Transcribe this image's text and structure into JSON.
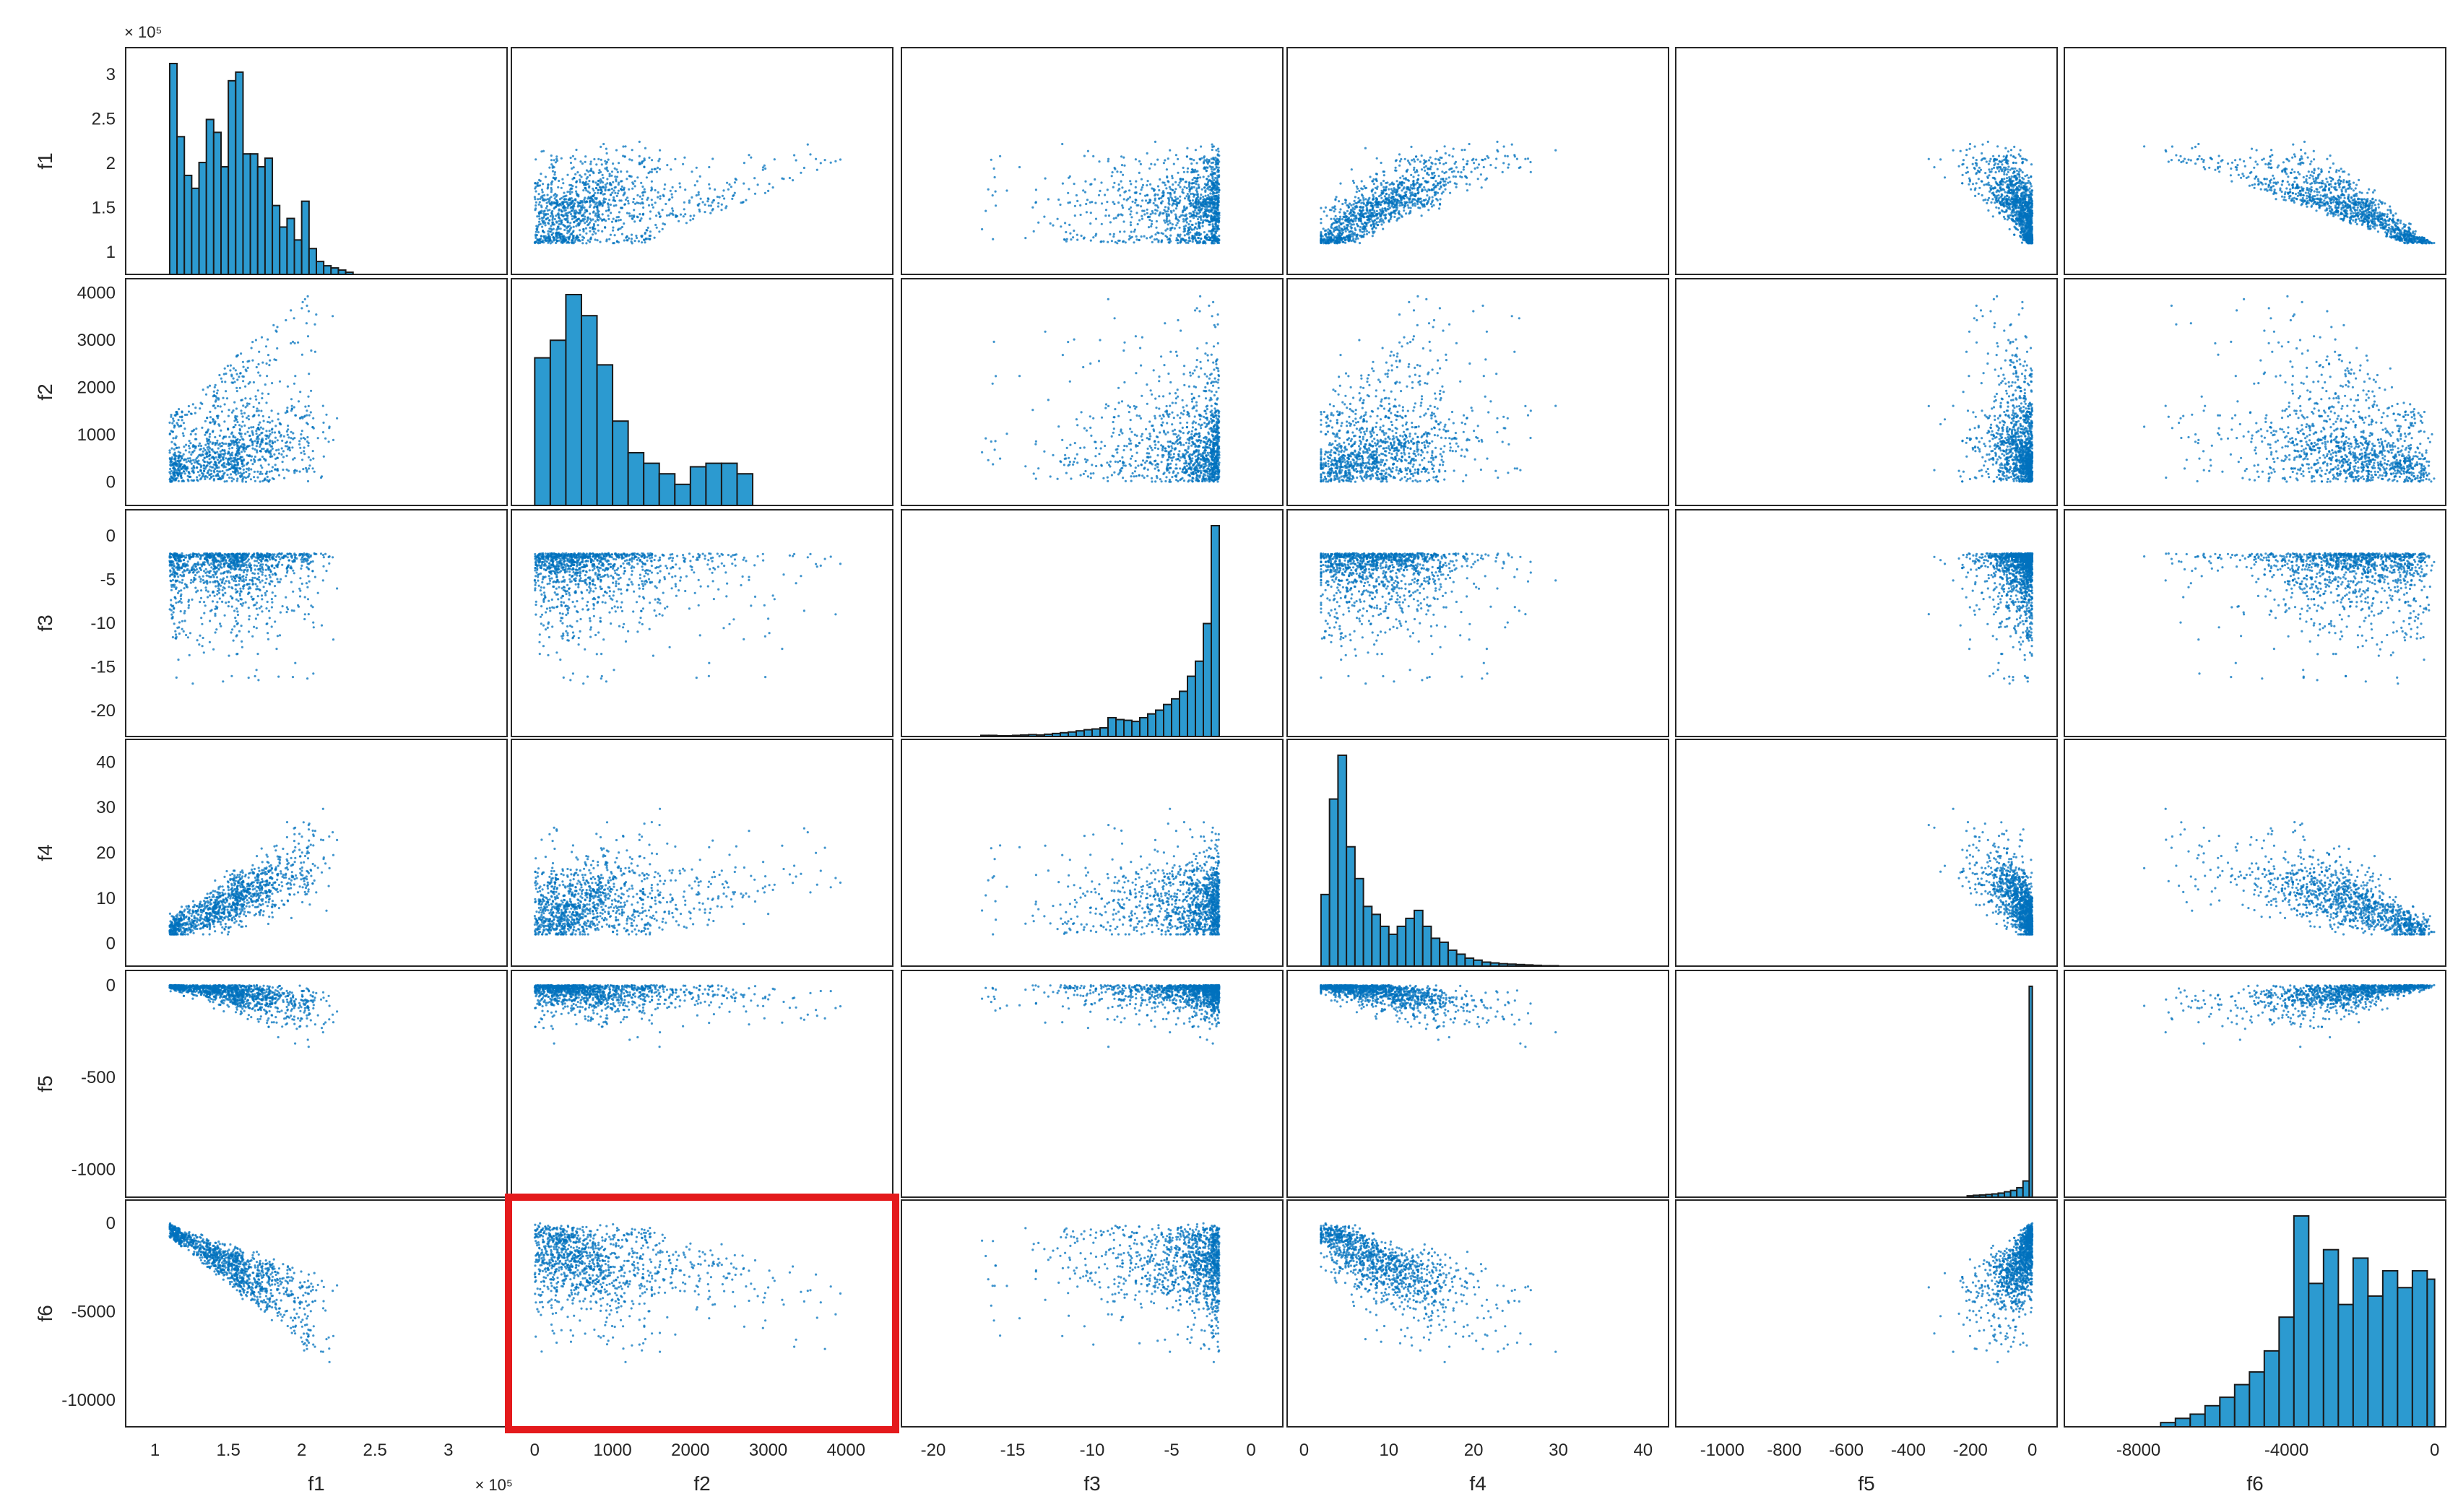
{
  "chart_data": {
    "type": "scatter-matrix",
    "variables": [
      "f1",
      "f2",
      "f3",
      "f4",
      "f5",
      "f6"
    ],
    "marker_color": "#0072BD",
    "bar_color": "#2C9AD0",
    "highlight_color": "#E41A1C",
    "highlight_panel": {
      "row": "f6",
      "col": "f2"
    },
    "x_axes": [
      {
        "var": "f1",
        "lim": [
          0.8,
          3.4
        ],
        "ticks": [
          1,
          1.5,
          2,
          2.5,
          3
        ],
        "tick_labels": [
          "1",
          "1.5",
          "2",
          "2.5",
          "3"
        ],
        "exponent": "× 10⁵"
      },
      {
        "var": "f2",
        "lim": [
          -300,
          4600
        ],
        "ticks": [
          0,
          1000,
          2000,
          3000,
          4000
        ],
        "tick_labels": [
          "0",
          "1000",
          "2000",
          "3000",
          "4000"
        ]
      },
      {
        "var": "f3",
        "lim": [
          -22,
          2
        ],
        "ticks": [
          -20,
          -15,
          -10,
          -5,
          0
        ],
        "tick_labels": [
          "-20",
          "-15",
          "-10",
          "-5",
          "0"
        ]
      },
      {
        "var": "f4",
        "lim": [
          -2,
          43
        ],
        "ticks": [
          0,
          10,
          20,
          30,
          40
        ],
        "tick_labels": [
          "0",
          "10",
          "20",
          "30",
          "40"
        ]
      },
      {
        "var": "f5",
        "lim": [
          -1150,
          80
        ],
        "ticks": [
          -1000,
          -800,
          -600,
          -400,
          -200,
          0
        ],
        "tick_labels": [
          "-1000",
          "-800",
          "-600",
          "-400",
          "-200",
          "0"
        ]
      },
      {
        "var": "f6",
        "lim": [
          -10000,
          300
        ],
        "ticks": [
          -8000,
          -4000,
          0
        ],
        "tick_labels": [
          "-8000",
          "-4000",
          "0"
        ]
      }
    ],
    "y_axes": [
      {
        "var": "f1",
        "lim": [
          0.75,
          3.3
        ],
        "ticks": [
          1,
          1.5,
          2,
          2.5,
          3
        ],
        "tick_labels": [
          "1",
          "1.5",
          "2",
          "2.5",
          "3"
        ],
        "exponent": "× 10⁵"
      },
      {
        "var": "f2",
        "lim": [
          -500,
          4300
        ],
        "ticks": [
          0,
          1000,
          2000,
          3000,
          4000
        ],
        "tick_labels": [
          "0",
          "1000",
          "2000",
          "3000",
          "4000"
        ]
      },
      {
        "var": "f3",
        "lim": [
          -23,
          3
        ],
        "ticks": [
          -20,
          -15,
          -10,
          -5,
          0
        ],
        "tick_labels": [
          "-20",
          "-15",
          "-10",
          "-5",
          "0"
        ]
      },
      {
        "var": "f4",
        "lim": [
          -5,
          45
        ],
        "ticks": [
          0,
          10,
          20,
          30,
          40
        ],
        "tick_labels": [
          "0",
          "10",
          "20",
          "30",
          "40"
        ]
      },
      {
        "var": "f5",
        "lim": [
          -1150,
          80
        ],
        "ticks": [
          -1000,
          -500,
          0
        ],
        "tick_labels": [
          "-1000",
          "-500",
          "0"
        ]
      },
      {
        "var": "f6",
        "lim": [
          -11500,
          1300
        ],
        "ticks": [
          -10000,
          -5000,
          0
        ],
        "tick_labels": [
          "-10000",
          "-5000",
          "0"
        ]
      }
    ],
    "histograms": [
      {
        "var": "f1",
        "bin_edges": [
          1.1,
          1.15,
          1.2,
          1.25,
          1.3,
          1.35,
          1.4,
          1.45,
          1.5,
          1.55,
          1.6,
          1.65,
          1.7,
          1.75,
          1.8,
          1.85,
          1.9,
          1.95,
          2.0,
          2.05,
          2.1,
          2.15,
          2.2,
          2.25,
          2.3,
          2.35
        ],
        "counts": [
          0.49,
          0.32,
          0.23,
          0.2,
          0.26,
          0.36,
          0.33,
          0.25,
          0.45,
          0.47,
          0.28,
          0.28,
          0.25,
          0.27,
          0.16,
          0.11,
          0.13,
          0.08,
          0.17,
          0.06,
          0.03,
          0.02,
          0.015,
          0.01,
          0.005
        ]
      },
      {
        "var": "f2",
        "bin_edges": [
          0,
          200,
          400,
          600,
          800,
          1000,
          1200,
          1400,
          1600,
          1800,
          2000,
          2200,
          2400,
          2600,
          2800
        ],
        "counts": [
          0.42,
          0.47,
          0.6,
          0.54,
          0.4,
          0.24,
          0.15,
          0.12,
          0.09,
          0.06,
          0.11,
          0.12,
          0.12,
          0.09
        ]
      },
      {
        "var": "f3",
        "bin_edges": [
          -17,
          -16.5,
          -16,
          -15.5,
          -15,
          -14.5,
          -14,
          -13.5,
          -13,
          -12.5,
          -12,
          -11.5,
          -11,
          -10.5,
          -10,
          -9.5,
          -9,
          -8.5,
          -8,
          -7.5,
          -7,
          -6.5,
          -6,
          -5.5,
          -5,
          -4.5,
          -4,
          -3.5,
          -3,
          -2.5,
          -2
        ],
        "counts": [
          0.003,
          0.003,
          0.002,
          0.002,
          0.003,
          0.004,
          0.005,
          0.004,
          0.006,
          0.008,
          0.01,
          0.012,
          0.015,
          0.018,
          0.02,
          0.023,
          0.05,
          0.045,
          0.043,
          0.04,
          0.05,
          0.06,
          0.07,
          0.085,
          0.1,
          0.12,
          0.16,
          0.2,
          0.3,
          0.56
        ]
      },
      {
        "var": "f4",
        "bin_edges": [
          2,
          3,
          4,
          5,
          6,
          7,
          8,
          9,
          10,
          11,
          12,
          13,
          14,
          15,
          16,
          17,
          18,
          19,
          20,
          21,
          22,
          23,
          24,
          25,
          26,
          27,
          28,
          29,
          30
        ],
        "counts": [
          0.18,
          0.42,
          0.53,
          0.3,
          0.22,
          0.15,
          0.13,
          0.1,
          0.08,
          0.1,
          0.12,
          0.14,
          0.1,
          0.07,
          0.06,
          0.04,
          0.03,
          0.02,
          0.015,
          0.01,
          0.008,
          0.006,
          0.005,
          0.004,
          0.003,
          0.002,
          0.001,
          0.001
        ]
      },
      {
        "var": "f5",
        "bin_edges": [
          -210,
          -190,
          -170,
          -150,
          -130,
          -110,
          -90,
          -70,
          -50,
          -30,
          -10,
          0
        ],
        "counts": [
          0.005,
          0.007,
          0.008,
          0.01,
          0.012,
          0.015,
          0.02,
          0.025,
          0.035,
          0.06,
          0.78
        ]
      },
      {
        "var": "f6",
        "bin_edges": [
          -7400,
          -7000,
          -6600,
          -6200,
          -5800,
          -5400,
          -5000,
          -4600,
          -4200,
          -3800,
          -3400,
          -3000,
          -2600,
          -2200,
          -1800,
          -1400,
          -1000,
          -600,
          -200,
          0
        ],
        "counts": [
          0.01,
          0.02,
          0.03,
          0.05,
          0.07,
          0.1,
          0.13,
          0.18,
          0.26,
          0.5,
          0.34,
          0.42,
          0.29,
          0.4,
          0.31,
          0.37,
          0.33,
          0.37,
          0.35
        ]
      }
    ],
    "scatter_description": "Each off-diagonal panel plots every pair of variables f1..f6 (~3000 observations) as small blue dots."
  }
}
